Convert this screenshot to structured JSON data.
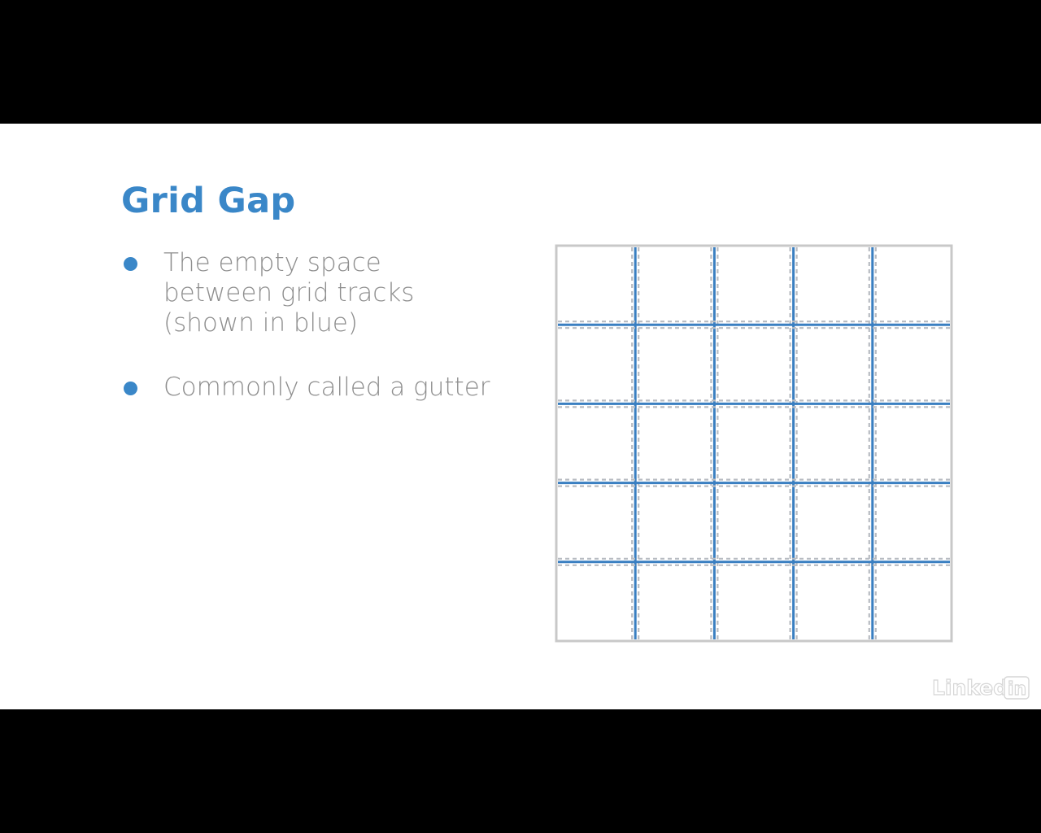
{
  "slide": {
    "title": "Grid Gap",
    "bullets": [
      {
        "text": "The empty space between grid tracks (shown in blue)"
      },
      {
        "text": "Commonly called a gutter"
      }
    ]
  },
  "diagram": {
    "columns": 5,
    "rows": 5,
    "gap_color": "#3a7fc1",
    "track_line_color": "#b8bcc2",
    "border_color": "#c8c8c8"
  },
  "watermark": {
    "logo": "LinkedIn"
  },
  "colors": {
    "accent": "#3a87c8",
    "body_text": "#8e8e8e",
    "background": "#ffffff",
    "letterbox": "#000000"
  }
}
